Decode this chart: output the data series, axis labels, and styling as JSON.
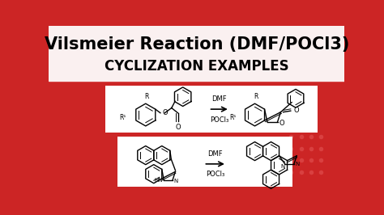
{
  "title_line1": "Vilsmeier Reaction (DMF/POCl3)",
  "title_line2": "CYCLIZATION EXAMPLES",
  "title_bg_color": "#faf0f0",
  "main_bg_color": "#cc2525",
  "box_color": "#ffffff",
  "title_fontsize": 15,
  "subtitle_fontsize": 12,
  "dot_color": "#d94040",
  "reaction1_reagent": "DMF",
  "reaction1_reagent2": "POCl₃",
  "reaction2_reagent": "DMF",
  "reaction2_reagent2": "POCl₃"
}
